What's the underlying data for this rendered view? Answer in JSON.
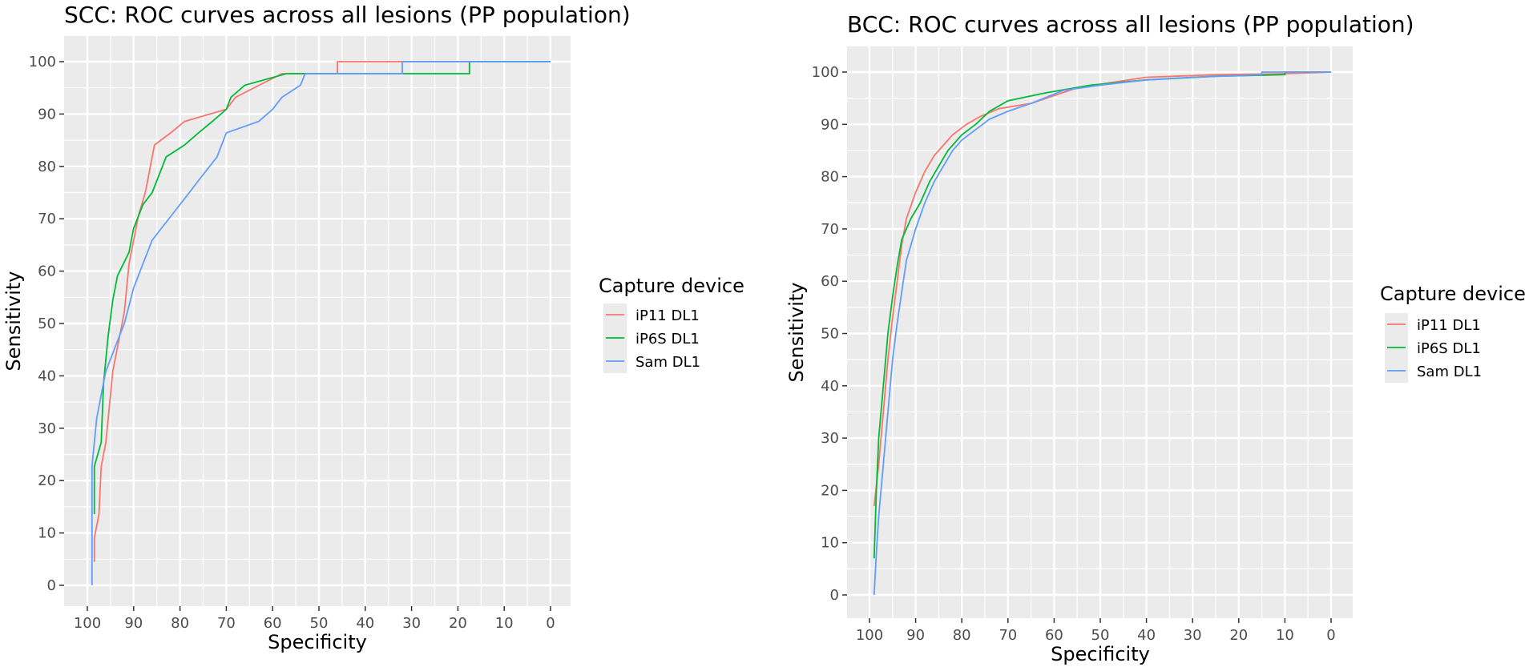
{
  "chart_data": [
    {
      "type": "line",
      "title": "SCC: ROC curves across all lesions (PP population)",
      "xlabel": "Specificity",
      "ylabel": "Sensitivity",
      "xlim": [
        100,
        0
      ],
      "ylim": [
        0,
        100
      ],
      "x_ticks": [
        100,
        90,
        80,
        70,
        60,
        50,
        40,
        30,
        20,
        10,
        0
      ],
      "y_ticks": [
        0,
        10,
        20,
        30,
        40,
        50,
        60,
        70,
        80,
        90,
        100
      ],
      "grid": true,
      "legend": {
        "title": "Capture device",
        "position": "right"
      },
      "series": [
        {
          "name": "iP11 DL1",
          "color": "#F8766D",
          "points": [
            [
              98.5,
              4.5
            ],
            [
              98.5,
              9
            ],
            [
              97.5,
              13.6
            ],
            [
              97,
              22.7
            ],
            [
              96,
              27.3
            ],
            [
              95.5,
              31.8
            ],
            [
              95,
              36.4
            ],
            [
              94.5,
              40.9
            ],
            [
              93,
              47.7
            ],
            [
              92,
              52.3
            ],
            [
              91.5,
              56.8
            ],
            [
              91,
              61.4
            ],
            [
              90,
              65.9
            ],
            [
              89,
              70.5
            ],
            [
              87.5,
              75
            ],
            [
              86.5,
              79.5
            ],
            [
              85.5,
              84.1
            ],
            [
              82,
              86.4
            ],
            [
              79,
              88.6
            ],
            [
              70,
              90.9
            ],
            [
              68,
              93.2
            ],
            [
              58,
              97.7
            ],
            [
              46,
              97.7
            ],
            [
              46,
              100
            ],
            [
              0,
              100
            ]
          ]
        },
        {
          "name": "iP6S DL1",
          "color": "#00BA38",
          "points": [
            [
              98.5,
              13.6
            ],
            [
              98.5,
              22.7
            ],
            [
              97,
              27.3
            ],
            [
              96.5,
              38.6
            ],
            [
              95.5,
              47.7
            ],
            [
              94.5,
              54.5
            ],
            [
              93.5,
              59.1
            ],
            [
              91,
              63.6
            ],
            [
              90,
              68.2
            ],
            [
              88,
              72.7
            ],
            [
              86,
              75
            ],
            [
              83,
              81.8
            ],
            [
              79,
              84.1
            ],
            [
              76,
              86.4
            ],
            [
              73,
              88.6
            ],
            [
              70,
              90.9
            ],
            [
              69,
              93.2
            ],
            [
              66,
              95.5
            ],
            [
              57,
              97.7
            ],
            [
              17.5,
              97.7
            ],
            [
              17.5,
              100
            ],
            [
              0,
              100
            ]
          ]
        },
        {
          "name": "Sam DL1",
          "color": "#619CFF",
          "points": [
            [
              99,
              0
            ],
            [
              99,
              22.7
            ],
            [
              98,
              31.8
            ],
            [
              97,
              36.4
            ],
            [
              96,
              40.9
            ],
            [
              94,
              45.5
            ],
            [
              92,
              50
            ],
            [
              90,
              56.8
            ],
            [
              88,
              61.4
            ],
            [
              86,
              65.9
            ],
            [
              84,
              68.2
            ],
            [
              80,
              72.7
            ],
            [
              78,
              75
            ],
            [
              76,
              77.3
            ],
            [
              72,
              81.8
            ],
            [
              70,
              86.4
            ],
            [
              63,
              88.6
            ],
            [
              60,
              90.9
            ],
            [
              58,
              93.2
            ],
            [
              54,
              95.5
            ],
            [
              53,
              97.7
            ],
            [
              32,
              97.7
            ],
            [
              32,
              100
            ],
            [
              0,
              100
            ]
          ]
        }
      ]
    },
    {
      "type": "line",
      "title": "BCC: ROC curves across all lesions (PP population)",
      "xlabel": "Specificity",
      "ylabel": "Sensitivity",
      "xlim": [
        100,
        0
      ],
      "ylim": [
        0,
        100
      ],
      "x_ticks": [
        100,
        90,
        80,
        70,
        60,
        50,
        40,
        30,
        20,
        10,
        0
      ],
      "y_ticks": [
        0,
        10,
        20,
        30,
        40,
        50,
        60,
        70,
        80,
        90,
        100
      ],
      "grid": true,
      "legend": {
        "title": "Capture device",
        "position": "right"
      },
      "series": [
        {
          "name": "iP11 DL1",
          "color": "#F8766D",
          "points": [
            [
              99,
              17
            ],
            [
              98,
              25
            ],
            [
              97,
              35
            ],
            [
              96,
              45
            ],
            [
              95,
              53
            ],
            [
              94,
              60
            ],
            [
              93,
              67
            ],
            [
              92,
              72
            ],
            [
              90,
              77
            ],
            [
              88,
              81
            ],
            [
              86,
              84
            ],
            [
              84,
              86
            ],
            [
              82,
              88
            ],
            [
              79,
              90
            ],
            [
              76,
              91.5
            ],
            [
              72,
              93
            ],
            [
              65,
              94
            ],
            [
              55,
              97
            ],
            [
              40,
              99
            ],
            [
              25,
              99.5
            ],
            [
              10,
              99.7
            ],
            [
              0,
              100
            ]
          ]
        },
        {
          "name": "iP6S DL1",
          "color": "#00BA38",
          "points": [
            [
              99,
              7
            ],
            [
              98.5,
              20
            ],
            [
              98,
              30
            ],
            [
              97,
              40
            ],
            [
              96,
              50
            ],
            [
              95,
              57
            ],
            [
              94,
              63
            ],
            [
              93,
              68
            ],
            [
              91,
              72
            ],
            [
              89,
              75
            ],
            [
              87,
              79
            ],
            [
              85,
              82
            ],
            [
              83,
              85
            ],
            [
              80,
              88
            ],
            [
              77,
              90
            ],
            [
              74,
              92.5
            ],
            [
              70,
              94.5
            ],
            [
              62,
              96
            ],
            [
              52,
              97.5
            ],
            [
              40,
              98.5
            ],
            [
              25,
              99.2
            ],
            [
              10,
              99.5
            ],
            [
              10,
              100
            ],
            [
              0,
              100
            ]
          ]
        },
        {
          "name": "Sam DL1",
          "color": "#619CFF",
          "points": [
            [
              99,
              0
            ],
            [
              98.5,
              8
            ],
            [
              98,
              15
            ],
            [
              97,
              25
            ],
            [
              96,
              35
            ],
            [
              95,
              45
            ],
            [
              94,
              52
            ],
            [
              93,
              58
            ],
            [
              92,
              64
            ],
            [
              90,
              70
            ],
            [
              88,
              75
            ],
            [
              86,
              79
            ],
            [
              84,
              82
            ],
            [
              82,
              85
            ],
            [
              80,
              87
            ],
            [
              77,
              89
            ],
            [
              74,
              91
            ],
            [
              70,
              92.5
            ],
            [
              65,
              94
            ],
            [
              58,
              96.5
            ],
            [
              50,
              97.5
            ],
            [
              40,
              98.5
            ],
            [
              30,
              99
            ],
            [
              15,
              99.5
            ],
            [
              15,
              100
            ],
            [
              0,
              100
            ]
          ]
        }
      ]
    }
  ]
}
